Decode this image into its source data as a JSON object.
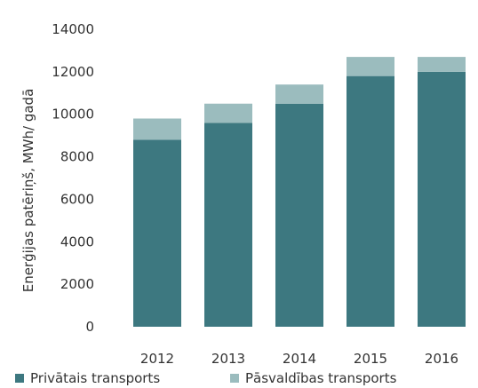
{
  "chart_data": {
    "type": "bar",
    "stacked": true,
    "categories": [
      "2012",
      "2013",
      "2014",
      "2015",
      "2016"
    ],
    "series": [
      {
        "name": "Privātais transports",
        "color": "#3d7880",
        "values": [
          8800,
          9600,
          10500,
          11800,
          12000
        ]
      },
      {
        "name": "Pāsvaldības transports",
        "color": "#9bbcbe",
        "values": [
          1000,
          900,
          900,
          900,
          700
        ]
      }
    ],
    "ylabel": "Enerģijas patēriņš, MWh/ gadā",
    "ylim": [
      0,
      14000
    ],
    "yticks": [
      0,
      2000,
      4000,
      6000,
      8000,
      10000,
      12000,
      14000
    ],
    "ytick_labels": [
      "0",
      "2000",
      "4000",
      "6000",
      "8000",
      "10000",
      "12000",
      "14000"
    ],
    "grid": false,
    "legend_position": "bottom"
  }
}
